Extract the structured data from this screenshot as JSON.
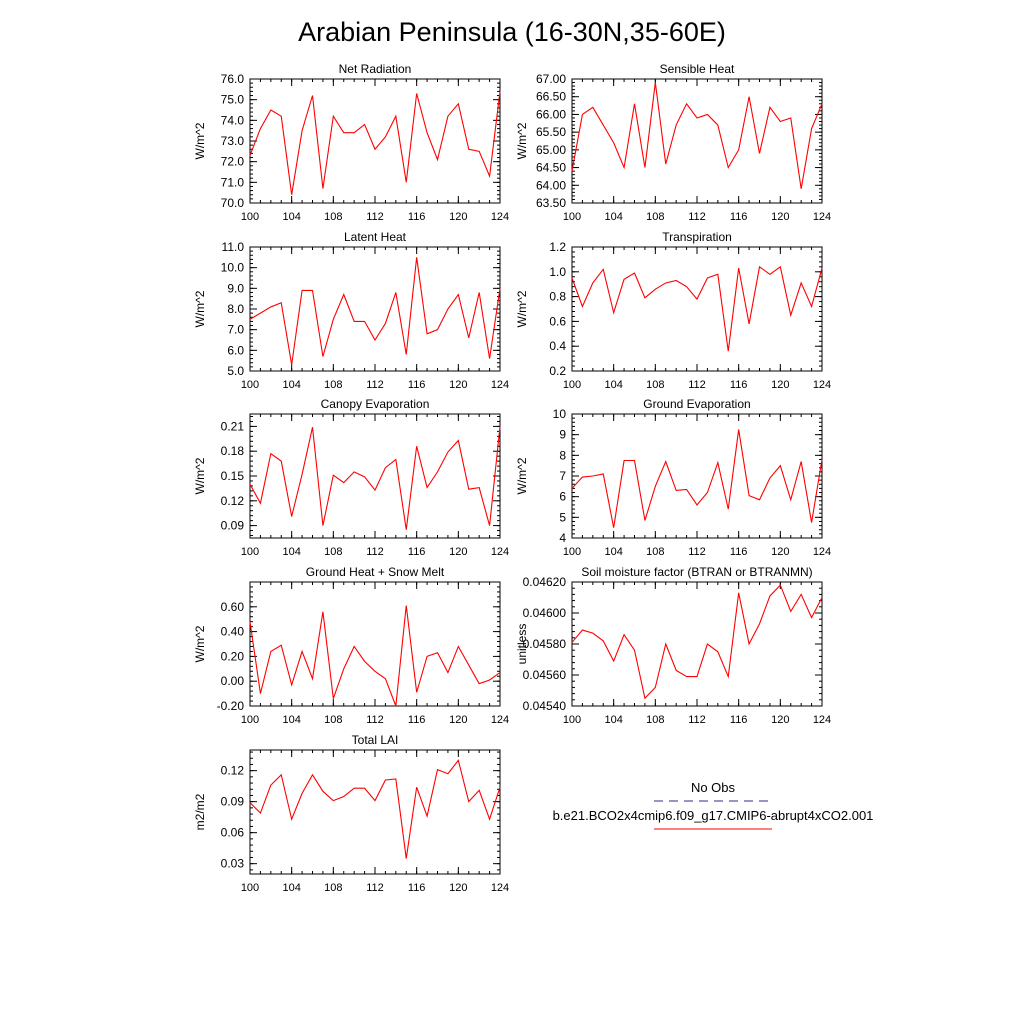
{
  "title": "Arabian Peninsula (16-30N,35-60E)",
  "legend": {
    "obs_label": "No Obs",
    "obs_color": "#2b2b8c",
    "model_label": "b.e21.BCO2x4cmip6.f09_g17.CMIP6-abrupt4xCO2.001",
    "model_color": "#ff0000"
  },
  "chart_data": [
    {
      "type": "line",
      "title": "Net Radiation",
      "ylabel": "W/m^2",
      "xlim": [
        100,
        124
      ],
      "ylim": [
        70,
        76
      ],
      "xticks": [
        100,
        104,
        108,
        112,
        116,
        120,
        124
      ],
      "yticks": [
        70,
        71,
        72,
        73,
        74,
        75,
        76
      ],
      "ytick_labels": [
        "70.0",
        "71.0",
        "72.0",
        "73.0",
        "74.0",
        "75.0",
        "76.0"
      ],
      "x": [
        100,
        101,
        102,
        103,
        104,
        105,
        106,
        107,
        108,
        109,
        110,
        111,
        112,
        113,
        114,
        115,
        116,
        117,
        118,
        119,
        120,
        121,
        122,
        123,
        124
      ],
      "series": [
        {
          "values": [
            72.3,
            73.6,
            74.5,
            74.2,
            70.4,
            73.5,
            75.2,
            70.7,
            74.2,
            73.4,
            73.4,
            73.8,
            72.6,
            73.2,
            74.2,
            71.0,
            75.3,
            73.4,
            72.1,
            74.2,
            74.8,
            72.6,
            72.5,
            71.3,
            75.4
          ]
        }
      ]
    },
    {
      "type": "line",
      "title": "Sensible Heat",
      "ylabel": "W/m^2",
      "xlim": [
        100,
        124
      ],
      "ylim": [
        63.5,
        67
      ],
      "xticks": [
        100,
        104,
        108,
        112,
        116,
        120,
        124
      ],
      "yticks": [
        63.5,
        64,
        64.5,
        65,
        65.5,
        66,
        66.5,
        67
      ],
      "ytick_labels": [
        "63.50",
        "64.00",
        "64.50",
        "65.00",
        "65.50",
        "66.00",
        "66.50",
        "67.00"
      ],
      "x": [
        100,
        101,
        102,
        103,
        104,
        105,
        106,
        107,
        108,
        109,
        110,
        111,
        112,
        113,
        114,
        115,
        116,
        117,
        118,
        119,
        120,
        121,
        122,
        123,
        124
      ],
      "series": [
        {
          "values": [
            64.4,
            66.0,
            66.2,
            65.7,
            65.2,
            64.5,
            66.3,
            64.5,
            66.9,
            64.6,
            65.7,
            66.3,
            65.9,
            66.0,
            65.7,
            64.5,
            65.0,
            66.5,
            64.9,
            66.2,
            65.8,
            65.9,
            63.9,
            65.6,
            66.3
          ]
        }
      ]
    },
    {
      "type": "line",
      "title": "Latent Heat",
      "ylabel": "W/m^2",
      "xlim": [
        100,
        124
      ],
      "ylim": [
        5,
        11
      ],
      "xticks": [
        100,
        104,
        108,
        112,
        116,
        120,
        124
      ],
      "yticks": [
        5,
        6,
        7,
        8,
        9,
        10,
        11
      ],
      "ytick_labels": [
        "5.0",
        "6.0",
        "7.0",
        "8.0",
        "9.0",
        "10.0",
        "11.0"
      ],
      "x": [
        100,
        101,
        102,
        103,
        104,
        105,
        106,
        107,
        108,
        109,
        110,
        111,
        112,
        113,
        114,
        115,
        116,
        117,
        118,
        119,
        120,
        121,
        122,
        123,
        124
      ],
      "series": [
        {
          "values": [
            7.5,
            7.8,
            8.1,
            8.3,
            5.3,
            8.9,
            8.9,
            5.7,
            7.5,
            8.7,
            7.4,
            7.4,
            6.5,
            7.3,
            8.8,
            5.8,
            10.5,
            6.8,
            7.0,
            8.0,
            8.7,
            6.6,
            8.8,
            5.6,
            9.0
          ]
        }
      ]
    },
    {
      "type": "line",
      "title": "Transpiration",
      "ylabel": "W/m^2",
      "xlim": [
        100,
        124
      ],
      "ylim": [
        0.2,
        1.2
      ],
      "xticks": [
        100,
        104,
        108,
        112,
        116,
        120,
        124
      ],
      "yticks": [
        0.2,
        0.4,
        0.6,
        0.8,
        1.0,
        1.2
      ],
      "ytick_labels": [
        "0.2",
        "0.4",
        "0.6",
        "0.8",
        "1.0",
        "1.2"
      ],
      "x": [
        100,
        101,
        102,
        103,
        104,
        105,
        106,
        107,
        108,
        109,
        110,
        111,
        112,
        113,
        114,
        115,
        116,
        117,
        118,
        119,
        120,
        121,
        122,
        123,
        124
      ],
      "series": [
        {
          "values": [
            0.95,
            0.72,
            0.91,
            1.02,
            0.67,
            0.94,
            0.99,
            0.79,
            0.86,
            0.91,
            0.93,
            0.88,
            0.78,
            0.95,
            0.98,
            0.36,
            1.03,
            0.58,
            1.04,
            0.98,
            1.04,
            0.65,
            0.91,
            0.72,
            1.03
          ]
        }
      ]
    },
    {
      "type": "line",
      "title": "Canopy Evaporation",
      "ylabel": "W/m^2",
      "xlim": [
        100,
        124
      ],
      "ylim": [
        0.075,
        0.225
      ],
      "xticks": [
        100,
        104,
        108,
        112,
        116,
        120,
        124
      ],
      "yticks": [
        0.09,
        0.12,
        0.15,
        0.18,
        0.21
      ],
      "ytick_labels": [
        "0.09",
        "0.12",
        "0.15",
        "0.18",
        "0.21"
      ],
      "x": [
        100,
        101,
        102,
        103,
        104,
        105,
        106,
        107,
        108,
        109,
        110,
        111,
        112,
        113,
        114,
        115,
        116,
        117,
        118,
        119,
        120,
        121,
        122,
        123,
        124
      ],
      "series": [
        {
          "values": [
            0.14,
            0.117,
            0.177,
            0.168,
            0.101,
            0.152,
            0.209,
            0.09,
            0.151,
            0.142,
            0.155,
            0.149,
            0.133,
            0.16,
            0.17,
            0.085,
            0.186,
            0.136,
            0.155,
            0.179,
            0.193,
            0.134,
            0.136,
            0.09,
            0.21
          ]
        }
      ]
    },
    {
      "type": "line",
      "title": "Ground Evaporation",
      "ylabel": "W/m^2",
      "xlim": [
        100,
        124
      ],
      "ylim": [
        4,
        10
      ],
      "xticks": [
        100,
        104,
        108,
        112,
        116,
        120,
        124
      ],
      "yticks": [
        4,
        5,
        6,
        7,
        8,
        9,
        10
      ],
      "ytick_labels": [
        "4",
        "5",
        "6",
        "7",
        "8",
        "9",
        "10"
      ],
      "x": [
        100,
        101,
        102,
        103,
        104,
        105,
        106,
        107,
        108,
        109,
        110,
        111,
        112,
        113,
        114,
        115,
        116,
        117,
        118,
        119,
        120,
        121,
        122,
        123,
        124
      ],
      "series": [
        {
          "values": [
            6.4,
            6.95,
            7.0,
            7.1,
            4.5,
            7.75,
            7.75,
            4.85,
            6.5,
            7.7,
            6.3,
            6.35,
            5.6,
            6.2,
            7.65,
            5.4,
            9.25,
            6.05,
            5.85,
            6.9,
            7.5,
            5.85,
            7.7,
            4.75,
            7.8
          ]
        }
      ]
    },
    {
      "type": "line",
      "title": "Ground Heat + Snow Melt",
      "ylabel": "W/m^2",
      "xlim": [
        100,
        124
      ],
      "ylim": [
        -0.2,
        0.8
      ],
      "xticks": [
        100,
        104,
        108,
        112,
        116,
        120,
        124
      ],
      "yticks": [
        -0.2,
        0,
        0.2,
        0.4,
        0.6
      ],
      "ytick_labels": [
        "-0.20",
        "0.00",
        "0.20",
        "0.40",
        "0.60"
      ],
      "x": [
        100,
        101,
        102,
        103,
        104,
        105,
        106,
        107,
        108,
        109,
        110,
        111,
        112,
        113,
        114,
        115,
        116,
        117,
        118,
        119,
        120,
        121,
        122,
        123,
        124
      ],
      "series": [
        {
          "values": [
            0.48,
            -0.1,
            0.24,
            0.29,
            -0.03,
            0.24,
            0.02,
            0.56,
            -0.14,
            0.1,
            0.28,
            0.16,
            0.08,
            0.02,
            -0.2,
            0.61,
            -0.09,
            0.2,
            0.23,
            0.07,
            0.28,
            0.13,
            -0.02,
            0.01,
            0.07
          ]
        }
      ]
    },
    {
      "type": "line",
      "title": "Soil moisture factor (BTRAN or BTRANMN)",
      "ylabel": "unitless",
      "xlim": [
        100,
        124
      ],
      "ylim": [
        0.0454,
        0.0462
      ],
      "xticks": [
        100,
        104,
        108,
        112,
        116,
        120,
        124
      ],
      "yticks": [
        0.0454,
        0.0456,
        0.0458,
        0.046,
        0.0462
      ],
      "ytick_labels": [
        "0.04540",
        "0.04560",
        "0.04580",
        "0.04600",
        "0.04620"
      ],
      "x": [
        100,
        101,
        102,
        103,
        104,
        105,
        106,
        107,
        108,
        109,
        110,
        111,
        112,
        113,
        114,
        115,
        116,
        117,
        118,
        119,
        120,
        121,
        122,
        123,
        124
      ],
      "series": [
        {
          "values": [
            0.04581,
            0.04589,
            0.04587,
            0.04582,
            0.04569,
            0.04586,
            0.04576,
            0.04545,
            0.04552,
            0.0458,
            0.04563,
            0.04559,
            0.04559,
            0.0458,
            0.04575,
            0.04559,
            0.04613,
            0.0458,
            0.04593,
            0.04611,
            0.04618,
            0.04601,
            0.04612,
            0.04597,
            0.0461
          ]
        }
      ]
    },
    {
      "type": "line",
      "title": "Total LAI",
      "ylabel": "m2/m2",
      "xlim": [
        100,
        124
      ],
      "ylim": [
        0.02,
        0.14
      ],
      "xticks": [
        100,
        104,
        108,
        112,
        116,
        120,
        124
      ],
      "yticks": [
        0.03,
        0.06,
        0.09,
        0.12
      ],
      "ytick_labels": [
        "0.03",
        "0.06",
        "0.09",
        "0.12"
      ],
      "x": [
        100,
        101,
        102,
        103,
        104,
        105,
        106,
        107,
        108,
        109,
        110,
        111,
        112,
        113,
        114,
        115,
        116,
        117,
        118,
        119,
        120,
        121,
        122,
        123,
        124
      ],
      "series": [
        {
          "values": [
            0.089,
            0.079,
            0.106,
            0.116,
            0.073,
            0.098,
            0.116,
            0.1,
            0.091,
            0.095,
            0.103,
            0.103,
            0.091,
            0.111,
            0.112,
            0.035,
            0.104,
            0.076,
            0.121,
            0.117,
            0.13,
            0.09,
            0.101,
            0.073,
            0.104
          ]
        }
      ]
    }
  ]
}
